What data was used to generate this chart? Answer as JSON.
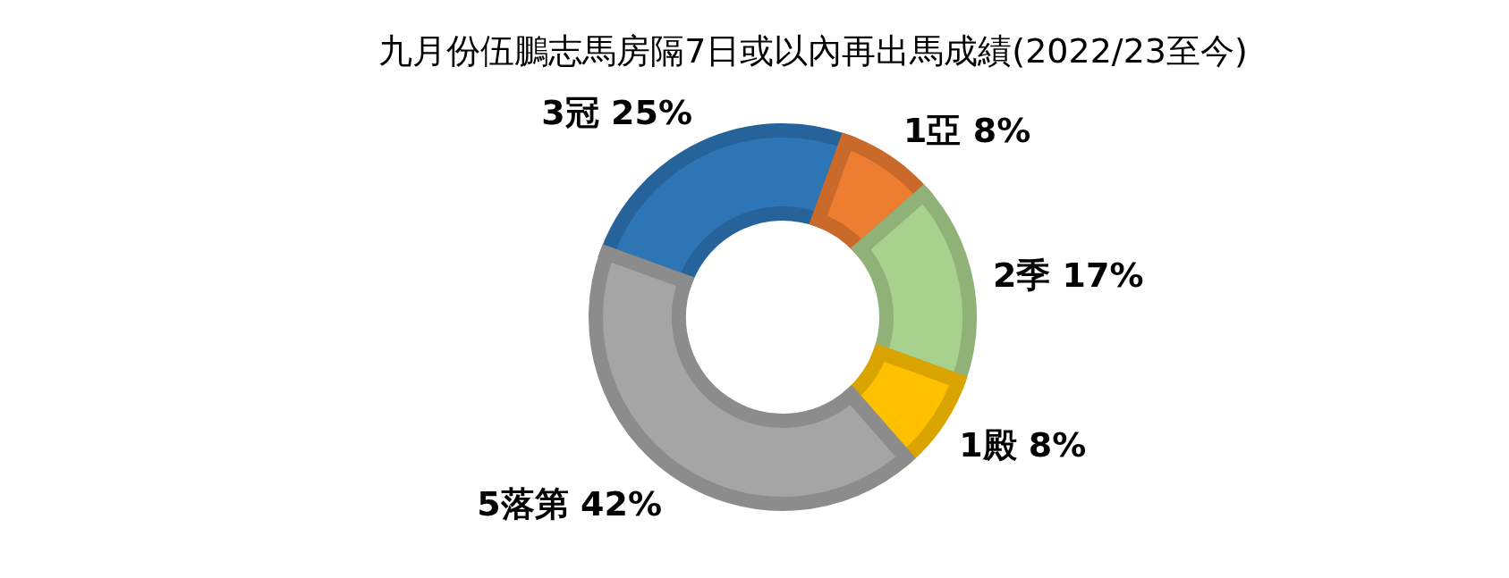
{
  "chart_data": {
    "type": "donut",
    "title": "九月份伍鵬志馬房隔7日或以內再出馬成績(2022/23至今)",
    "categories": [
      "3冠",
      "1亞",
      "2季",
      "1殿",
      "5落第"
    ],
    "values": [
      25,
      8,
      17,
      8,
      42
    ],
    "value_labels": [
      "25%",
      "8%",
      "17%",
      "8%",
      "42%"
    ],
    "colors": [
      "#2e75b6",
      "#ed7d31",
      "#a9d18e",
      "#ffc000",
      "#a5a5a5"
    ],
    "legend": false
  }
}
